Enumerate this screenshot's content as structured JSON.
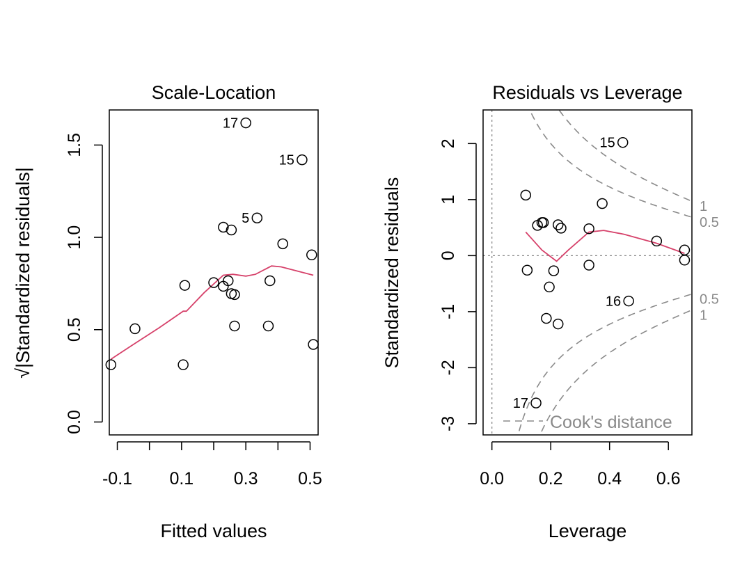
{
  "chart_data": [
    {
      "type": "scatter",
      "title": "Scale-Location",
      "xlabel": "Fitted values",
      "ylabel": "√|Standardized residuals|",
      "xlim": [
        -0.125,
        0.525
      ],
      "ylim": [
        -0.07,
        1.69
      ],
      "xticks": [
        -0.1,
        0.0,
        0.1,
        0.2,
        0.3,
        0.4,
        0.5
      ],
      "xtick_labels": [
        "-0.1",
        "",
        "0.1",
        "",
        "0.3",
        "",
        "0.5"
      ],
      "yticks": [
        0.0,
        0.5,
        1.0,
        1.5
      ],
      "ytick_labels": [
        "0.0",
        "0.5",
        "1.0",
        "1.5"
      ],
      "points": [
        {
          "x": -0.12,
          "y": 0.31
        },
        {
          "x": -0.045,
          "y": 0.505
        },
        {
          "x": 0.105,
          "y": 0.31
        },
        {
          "x": 0.11,
          "y": 0.74
        },
        {
          "x": 0.2,
          "y": 0.755
        },
        {
          "x": 0.23,
          "y": 1.055
        },
        {
          "x": 0.23,
          "y": 0.735
        },
        {
          "x": 0.245,
          "y": 0.765
        },
        {
          "x": 0.255,
          "y": 1.04
        },
        {
          "x": 0.255,
          "y": 0.695
        },
        {
          "x": 0.265,
          "y": 0.52
        },
        {
          "x": 0.265,
          "y": 0.69
        },
        {
          "x": 0.3,
          "y": 1.62,
          "label": "17"
        },
        {
          "x": 0.335,
          "y": 1.105,
          "label": "5"
        },
        {
          "x": 0.37,
          "y": 0.52
        },
        {
          "x": 0.375,
          "y": 0.765
        },
        {
          "x": 0.415,
          "y": 0.965
        },
        {
          "x": 0.475,
          "y": 1.42,
          "label": "15"
        },
        {
          "x": 0.505,
          "y": 0.905
        },
        {
          "x": 0.51,
          "y": 0.42
        }
      ],
      "smoother": {
        "x": [
          -0.12,
          -0.05,
          0.03,
          0.105,
          0.115,
          0.17,
          0.23,
          0.26,
          0.3,
          0.33,
          0.38,
          0.41,
          0.51
        ],
        "y": [
          0.34,
          0.42,
          0.51,
          0.6,
          0.6,
          0.7,
          0.795,
          0.8,
          0.79,
          0.8,
          0.845,
          0.84,
          0.795
        ]
      },
      "colors": {
        "points": "#000000",
        "smoother": "#d6416a"
      }
    },
    {
      "type": "scatter",
      "title": "Residuals vs Leverage",
      "xlabel": "Leverage",
      "ylabel": "Standardized residuals",
      "xlim": [
        -0.03,
        0.68
      ],
      "ylim": [
        -3.2,
        2.6
      ],
      "xticks": [
        0.0,
        0.2,
        0.4,
        0.6
      ],
      "xtick_labels": [
        "0.0",
        "0.2",
        "0.4",
        "0.6"
      ],
      "yticks": [
        -3,
        -2,
        -1,
        0,
        1,
        2
      ],
      "ytick_labels": [
        "-3",
        "-2",
        "-1",
        "0",
        "1",
        "2"
      ],
      "points": [
        {
          "x": 0.115,
          "y": 1.08
        },
        {
          "x": 0.12,
          "y": -0.26
        },
        {
          "x": 0.15,
          "y": -2.63,
          "label": "17"
        },
        {
          "x": 0.155,
          "y": 0.54
        },
        {
          "x": 0.17,
          "y": 0.59
        },
        {
          "x": 0.175,
          "y": 0.59
        },
        {
          "x": 0.185,
          "y": -1.12
        },
        {
          "x": 0.195,
          "y": -0.56
        },
        {
          "x": 0.21,
          "y": -0.27
        },
        {
          "x": 0.225,
          "y": -1.22
        },
        {
          "x": 0.225,
          "y": 0.55
        },
        {
          "x": 0.235,
          "y": 0.49
        },
        {
          "x": 0.33,
          "y": -0.17
        },
        {
          "x": 0.33,
          "y": 0.48
        },
        {
          "x": 0.375,
          "y": 0.93
        },
        {
          "x": 0.445,
          "y": 2.02,
          "label": "15"
        },
        {
          "x": 0.465,
          "y": -0.81,
          "label": "16"
        },
        {
          "x": 0.56,
          "y": 0.26
        },
        {
          "x": 0.655,
          "y": 0.1
        },
        {
          "x": 0.655,
          "y": -0.08
        }
      ],
      "smoother": {
        "x": [
          0.115,
          0.17,
          0.22,
          0.26,
          0.33,
          0.38,
          0.45,
          0.56,
          0.655
        ],
        "y": [
          0.42,
          0.1,
          -0.1,
          0.1,
          0.42,
          0.45,
          0.38,
          0.22,
          0.04
        ]
      },
      "cooks_distance": {
        "levels": [
          0.5,
          1
        ],
        "labels": [
          "0.5",
          "1"
        ],
        "parameters": 2,
        "legend": "Cook's distance"
      },
      "colors": {
        "points": "#000000",
        "smoother": "#d6416a",
        "reference": "#8a8a8a"
      }
    }
  ]
}
